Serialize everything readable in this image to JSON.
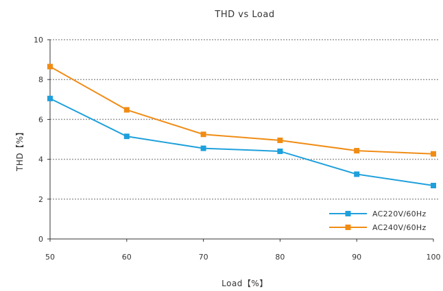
{
  "chart_data": {
    "type": "line",
    "title": "THD vs Load",
    "xlabel": "Load【%】",
    "ylabel": "THD【%】",
    "x": [
      50,
      60,
      70,
      80,
      90,
      100
    ],
    "x_ticks": [
      "50",
      "60",
      "70",
      "80",
      "90",
      "100"
    ],
    "y_ticks": [
      "0",
      "2",
      "4",
      "6",
      "8",
      "10"
    ],
    "xlim": [
      50,
      100
    ],
    "ylim": [
      0,
      10
    ],
    "grid": "horizontal dotted",
    "legend_position": "bottom-right",
    "series": [
      {
        "name": "AC220V/60Hz",
        "color": "#1ea0dc",
        "marker": "square",
        "values": [
          7.05,
          5.15,
          4.55,
          4.4,
          3.25,
          2.68
        ]
      },
      {
        "name": "AC240V/60Hz",
        "color": "#f08c14",
        "marker": "square",
        "values": [
          8.65,
          6.48,
          5.25,
          4.95,
          4.43,
          4.27
        ]
      }
    ]
  }
}
